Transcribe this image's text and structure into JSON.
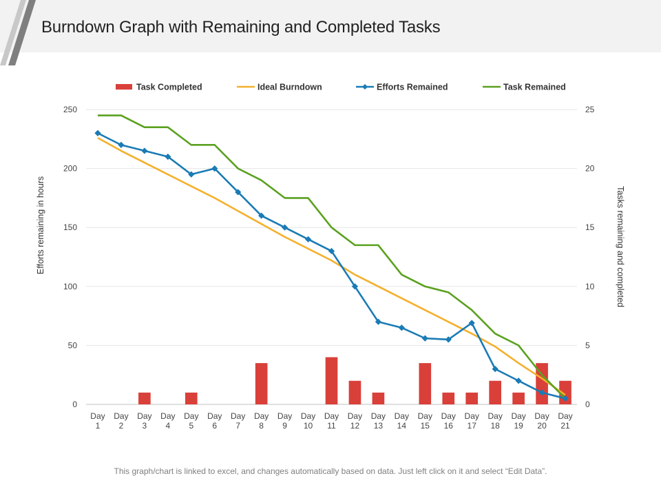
{
  "header": {
    "title": "Burndown Graph with Remaining and Completed Tasks"
  },
  "footer": {
    "note": "This graph/chart is linked to excel, and changes automatically based on data. Just left click on it and select “Edit Data”."
  },
  "colors": {
    "task_completed": "#d9403a",
    "ideal_burndown": "#f4b02c",
    "efforts_remained": "#1a7bb5",
    "task_remained": "#5aa11f",
    "title_band": "#f2f2f2",
    "deco_stripe": "#7f7f7f"
  },
  "chart_data": {
    "type": "bar+line",
    "title": "",
    "xlabel": "",
    "ylabel_left": "Efforts remaining in hours",
    "ylabel_right": "Tasks remaining and completed",
    "ylim_left": [
      0,
      250
    ],
    "ylim_right": [
      0,
      25
    ],
    "yticks_left": [
      "0",
      "50",
      "100",
      "150",
      "200",
      "250"
    ],
    "yticks_right": [
      "0",
      "5",
      "10",
      "15",
      "20",
      "25"
    ],
    "grid": true,
    "legend_position": "top",
    "categories": [
      [
        "Day",
        "1"
      ],
      [
        "Day",
        "2"
      ],
      [
        "Day",
        "3"
      ],
      [
        "Day",
        "4"
      ],
      [
        "Day",
        "5"
      ],
      [
        "Day",
        "6"
      ],
      [
        "Day",
        "7"
      ],
      [
        "Day",
        "8"
      ],
      [
        "Day",
        "9"
      ],
      [
        "Day",
        "10"
      ],
      [
        "Day",
        "11"
      ],
      [
        "Day",
        "12"
      ],
      [
        "Day",
        "13"
      ],
      [
        "Day",
        "14"
      ],
      [
        "Day",
        "15"
      ],
      [
        "Day",
        "16"
      ],
      [
        "Day",
        "17"
      ],
      [
        "Day",
        "18"
      ],
      [
        "Day",
        "19"
      ],
      [
        "Day",
        "20"
      ],
      [
        "Day",
        "21"
      ]
    ],
    "series": [
      {
        "name": "Task Completed",
        "kind": "bar",
        "axis": "right",
        "values": [
          0,
          0,
          1,
          0,
          1,
          0,
          0,
          3.5,
          0,
          0,
          4,
          2,
          1,
          0,
          3.5,
          1,
          1,
          2,
          1,
          3.5,
          2
        ]
      },
      {
        "name": "Ideal Burndown",
        "kind": "line",
        "axis": "left",
        "values": [
          226,
          215,
          205,
          195,
          185,
          175,
          164,
          153,
          142,
          132,
          122,
          110,
          100,
          90,
          80,
          70,
          60,
          49,
          35,
          22,
          8
        ]
      },
      {
        "name": "Efforts Remained",
        "kind": "line-marker",
        "axis": "left",
        "values": [
          230,
          220,
          215,
          210,
          195,
          200,
          180,
          160,
          150,
          140,
          130,
          100,
          70,
          65,
          56,
          55,
          69,
          30,
          20,
          10,
          5
        ]
      },
      {
        "name": "Task Remained",
        "kind": "line",
        "axis": "right",
        "values": [
          24.5,
          24.5,
          23.5,
          23.5,
          22,
          22,
          20,
          19,
          17.5,
          17.5,
          15,
          13.5,
          13.5,
          11,
          10,
          9.5,
          8,
          6,
          5,
          2.5,
          0.5
        ]
      }
    ]
  }
}
